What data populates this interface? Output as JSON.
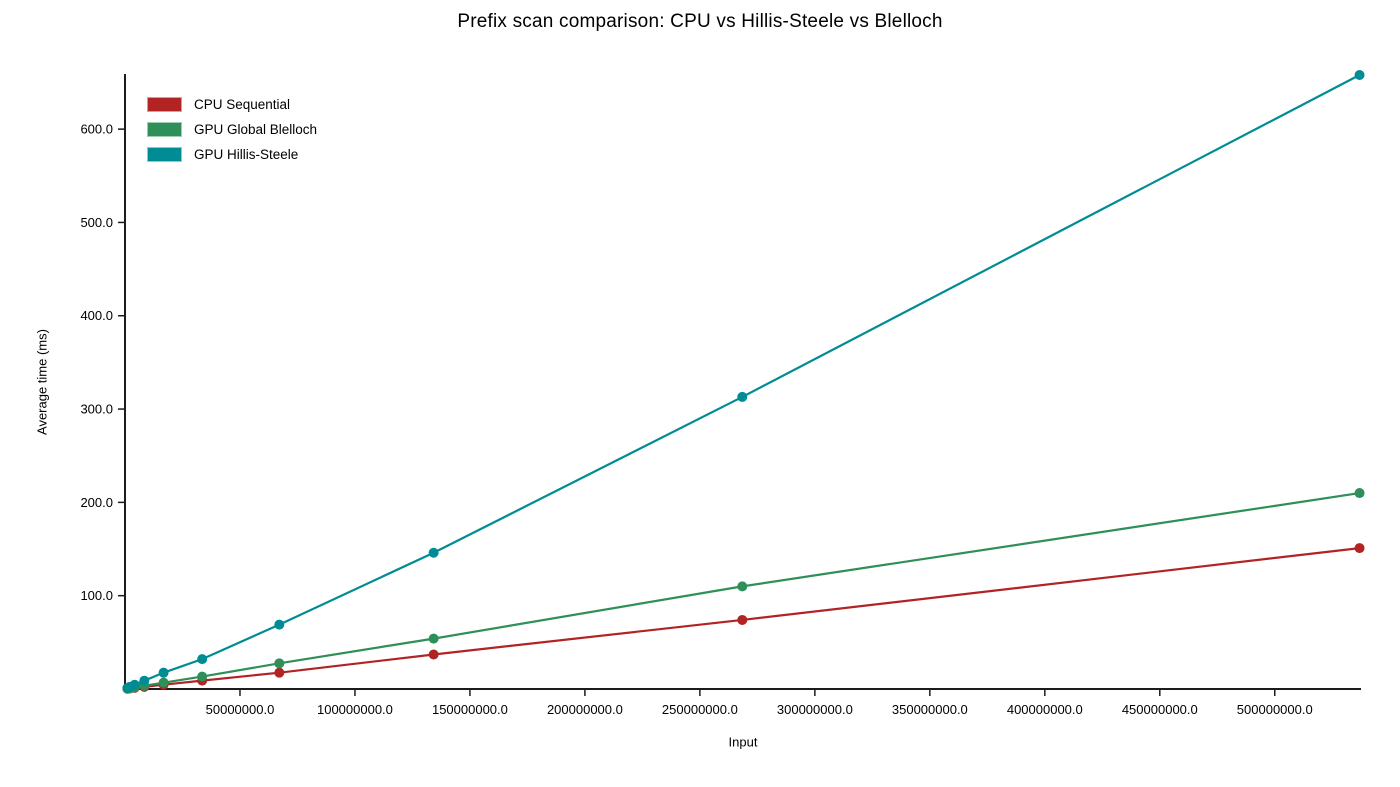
{
  "chart_data": {
    "type": "line",
    "title": "Prefix scan comparison: CPU vs Hillis-Steele vs Blelloch",
    "xlabel": "Input",
    "ylabel": "Average time (ms)",
    "x": [
      1048576,
      2097152,
      4194304,
      8388608,
      16777216,
      33554432,
      67108864,
      134217728,
      268435456,
      536870912
    ],
    "series": [
      {
        "name": "CPU Sequential",
        "color": "#b22323",
        "values": [
          0.3,
          0.6,
          1.2,
          2.3,
          4.6,
          9.0,
          17.5,
          37.0,
          74.0,
          151.0
        ]
      },
      {
        "name": "GPU Global Blelloch",
        "color": "#2e8f58",
        "values": [
          0.5,
          0.9,
          1.8,
          3.5,
          6.8,
          13.3,
          27.5,
          54.0,
          110.0,
          210.0
        ]
      },
      {
        "name": "GPU Hillis-Steele",
        "color": "#008c94",
        "values": [
          1.2,
          2.3,
          4.5,
          8.9,
          17.5,
          32.0,
          69.0,
          146.0,
          313.0,
          658.0
        ]
      }
    ],
    "x_ticks": {
      "values": [
        50000000,
        100000000,
        150000000,
        200000000,
        250000000,
        300000000,
        350000000,
        400000000,
        450000000,
        500000000
      ],
      "labels": [
        "50000000.0",
        "100000000.0",
        "150000000.0",
        "200000000.0",
        "250000000.0",
        "300000000.0",
        "350000000.0",
        "400000000.0",
        "450000000.0",
        "500000000.0"
      ]
    },
    "y_ticks": {
      "values": [
        100,
        200,
        300,
        400,
        500,
        600
      ],
      "labels": [
        "100.0",
        "200.0",
        "300.0",
        "400.0",
        "500.0",
        "600.0"
      ]
    },
    "xlim": [
      0,
      537500000
    ],
    "ylim": [
      0,
      658
    ],
    "grid": false,
    "legend_position": "top-left",
    "axis_color": "#1c1c1c",
    "text_color": "#000000",
    "background": "#ffffff"
  }
}
